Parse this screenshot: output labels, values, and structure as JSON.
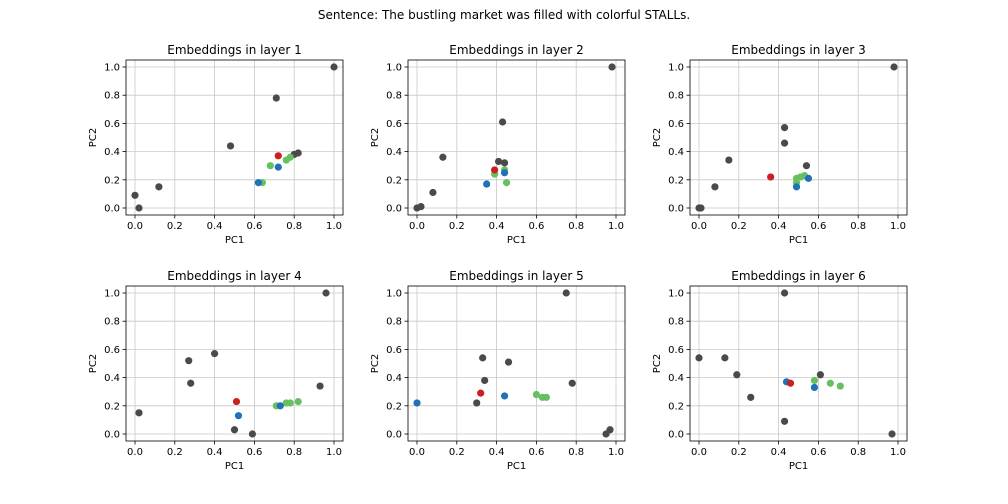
{
  "suptitle": "Sentence: The bustling market was filled with colorful STALLs.",
  "colors": {
    "other": "#4a4a4a",
    "red": "#cc1f1f",
    "blue": "#1f72b5",
    "green": "#66c060",
    "grid": "#c8c8c8",
    "axis": "#000000"
  },
  "chart_data": [
    {
      "type": "scatter",
      "title": "Embeddings in layer 1",
      "xlabel": "PC1",
      "ylabel": "PC2",
      "xlim": [
        0,
        1
      ],
      "ylim": [
        0,
        1
      ],
      "xticks": [
        0.0,
        0.2,
        0.4,
        0.6,
        0.8,
        1.0
      ],
      "yticks": [
        0.0,
        0.2,
        0.4,
        0.6,
        0.8,
        1.0
      ],
      "grid": true,
      "points": {
        "other": [
          [
            0.0,
            0.09
          ],
          [
            0.02,
            0.0
          ],
          [
            0.12,
            0.15
          ],
          [
            0.48,
            0.44
          ],
          [
            0.71,
            0.78
          ],
          [
            0.8,
            0.38
          ],
          [
            0.82,
            0.39
          ],
          [
            1.0,
            1.0
          ]
        ],
        "red": [
          [
            0.72,
            0.37
          ]
        ],
        "blue": [
          [
            0.62,
            0.18
          ],
          [
            0.72,
            0.29
          ]
        ],
        "green": [
          [
            0.64,
            0.18
          ],
          [
            0.68,
            0.3
          ],
          [
            0.76,
            0.34
          ],
          [
            0.78,
            0.36
          ]
        ]
      }
    },
    {
      "type": "scatter",
      "title": "Embeddings in layer 2",
      "xlabel": "PC1",
      "ylabel": "PC2",
      "xlim": [
        0,
        1
      ],
      "ylim": [
        0,
        1
      ],
      "xticks": [
        0.0,
        0.2,
        0.4,
        0.6,
        0.8,
        1.0
      ],
      "yticks": [
        0.0,
        0.2,
        0.4,
        0.6,
        0.8,
        1.0
      ],
      "grid": true,
      "points": {
        "other": [
          [
            0.0,
            0.0
          ],
          [
            0.02,
            0.01
          ],
          [
            0.08,
            0.11
          ],
          [
            0.13,
            0.36
          ],
          [
            0.41,
            0.33
          ],
          [
            0.43,
            0.61
          ],
          [
            0.44,
            0.32
          ],
          [
            0.98,
            1.0
          ]
        ],
        "red": [
          [
            0.39,
            0.27
          ]
        ],
        "blue": [
          [
            0.35,
            0.17
          ],
          [
            0.44,
            0.25
          ]
        ],
        "green": [
          [
            0.39,
            0.24
          ],
          [
            0.44,
            0.27
          ],
          [
            0.45,
            0.18
          ]
        ]
      }
    },
    {
      "type": "scatter",
      "title": "Embeddings in layer 3",
      "xlabel": "PC1",
      "ylabel": "PC2",
      "xlim": [
        0,
        1
      ],
      "ylim": [
        0,
        1
      ],
      "xticks": [
        0.0,
        0.2,
        0.4,
        0.6,
        0.8,
        1.0
      ],
      "yticks": [
        0.0,
        0.2,
        0.4,
        0.6,
        0.8,
        1.0
      ],
      "grid": true,
      "points": {
        "other": [
          [
            0.0,
            0.0
          ],
          [
            0.01,
            0.0
          ],
          [
            0.08,
            0.15
          ],
          [
            0.15,
            0.34
          ],
          [
            0.43,
            0.57
          ],
          [
            0.43,
            0.46
          ],
          [
            0.54,
            0.3
          ],
          [
            0.98,
            1.0
          ]
        ],
        "red": [
          [
            0.36,
            0.22
          ]
        ],
        "blue": [
          [
            0.49,
            0.15
          ],
          [
            0.55,
            0.21
          ]
        ],
        "green": [
          [
            0.49,
            0.18
          ],
          [
            0.49,
            0.21
          ],
          [
            0.51,
            0.22
          ],
          [
            0.53,
            0.23
          ]
        ]
      }
    },
    {
      "type": "scatter",
      "title": "Embeddings in layer 4",
      "xlabel": "PC1",
      "ylabel": "PC2",
      "xlim": [
        0,
        1
      ],
      "ylim": [
        0,
        1
      ],
      "xticks": [
        0.0,
        0.2,
        0.4,
        0.6,
        0.8,
        1.0
      ],
      "yticks": [
        0.0,
        0.2,
        0.4,
        0.6,
        0.8,
        1.0
      ],
      "grid": true,
      "points": {
        "other": [
          [
            0.02,
            0.15
          ],
          [
            0.27,
            0.52
          ],
          [
            0.28,
            0.36
          ],
          [
            0.4,
            0.57
          ],
          [
            0.5,
            0.03
          ],
          [
            0.59,
            0.0
          ],
          [
            0.93,
            0.34
          ],
          [
            0.96,
            1.0
          ]
        ],
        "red": [
          [
            0.51,
            0.23
          ]
        ],
        "blue": [
          [
            0.52,
            0.13
          ],
          [
            0.73,
            0.2
          ]
        ],
        "green": [
          [
            0.71,
            0.2
          ],
          [
            0.76,
            0.22
          ],
          [
            0.78,
            0.22
          ],
          [
            0.82,
            0.23
          ]
        ]
      }
    },
    {
      "type": "scatter",
      "title": "Embeddings in layer 5",
      "xlabel": "PC1",
      "ylabel": "PC2",
      "xlim": [
        0,
        1
      ],
      "ylim": [
        0,
        1
      ],
      "xticks": [
        0.0,
        0.2,
        0.4,
        0.6,
        0.8,
        1.0
      ],
      "yticks": [
        0.0,
        0.2,
        0.4,
        0.6,
        0.8,
        1.0
      ],
      "grid": true,
      "points": {
        "other": [
          [
            0.3,
            0.22
          ],
          [
            0.33,
            0.54
          ],
          [
            0.34,
            0.38
          ],
          [
            0.46,
            0.51
          ],
          [
            0.75,
            1.0
          ],
          [
            0.78,
            0.36
          ],
          [
            0.95,
            0.0
          ],
          [
            0.97,
            0.03
          ]
        ],
        "red": [
          [
            0.32,
            0.29
          ]
        ],
        "blue": [
          [
            0.0,
            0.22
          ],
          [
            0.44,
            0.27
          ]
        ],
        "green": [
          [
            0.6,
            0.28
          ],
          [
            0.63,
            0.26
          ],
          [
            0.65,
            0.26
          ]
        ]
      }
    },
    {
      "type": "scatter",
      "title": "Embeddings in layer 6",
      "xlabel": "PC1",
      "ylabel": "PC2",
      "xlim": [
        0,
        1
      ],
      "ylim": [
        0,
        1
      ],
      "xticks": [
        0.0,
        0.2,
        0.4,
        0.6,
        0.8,
        1.0
      ],
      "yticks": [
        0.0,
        0.2,
        0.4,
        0.6,
        0.8,
        1.0
      ],
      "grid": true,
      "points": {
        "other": [
          [
            0.0,
            0.54
          ],
          [
            0.13,
            0.54
          ],
          [
            0.19,
            0.42
          ],
          [
            0.26,
            0.26
          ],
          [
            0.43,
            0.09
          ],
          [
            0.43,
            1.0
          ],
          [
            0.61,
            0.42
          ],
          [
            0.97,
            0.0
          ]
        ],
        "red": [
          [
            0.46,
            0.36
          ]
        ],
        "blue": [
          [
            0.44,
            0.37
          ],
          [
            0.58,
            0.33
          ]
        ],
        "green": [
          [
            0.58,
            0.38
          ],
          [
            0.66,
            0.36
          ],
          [
            0.71,
            0.34
          ]
        ]
      }
    }
  ]
}
